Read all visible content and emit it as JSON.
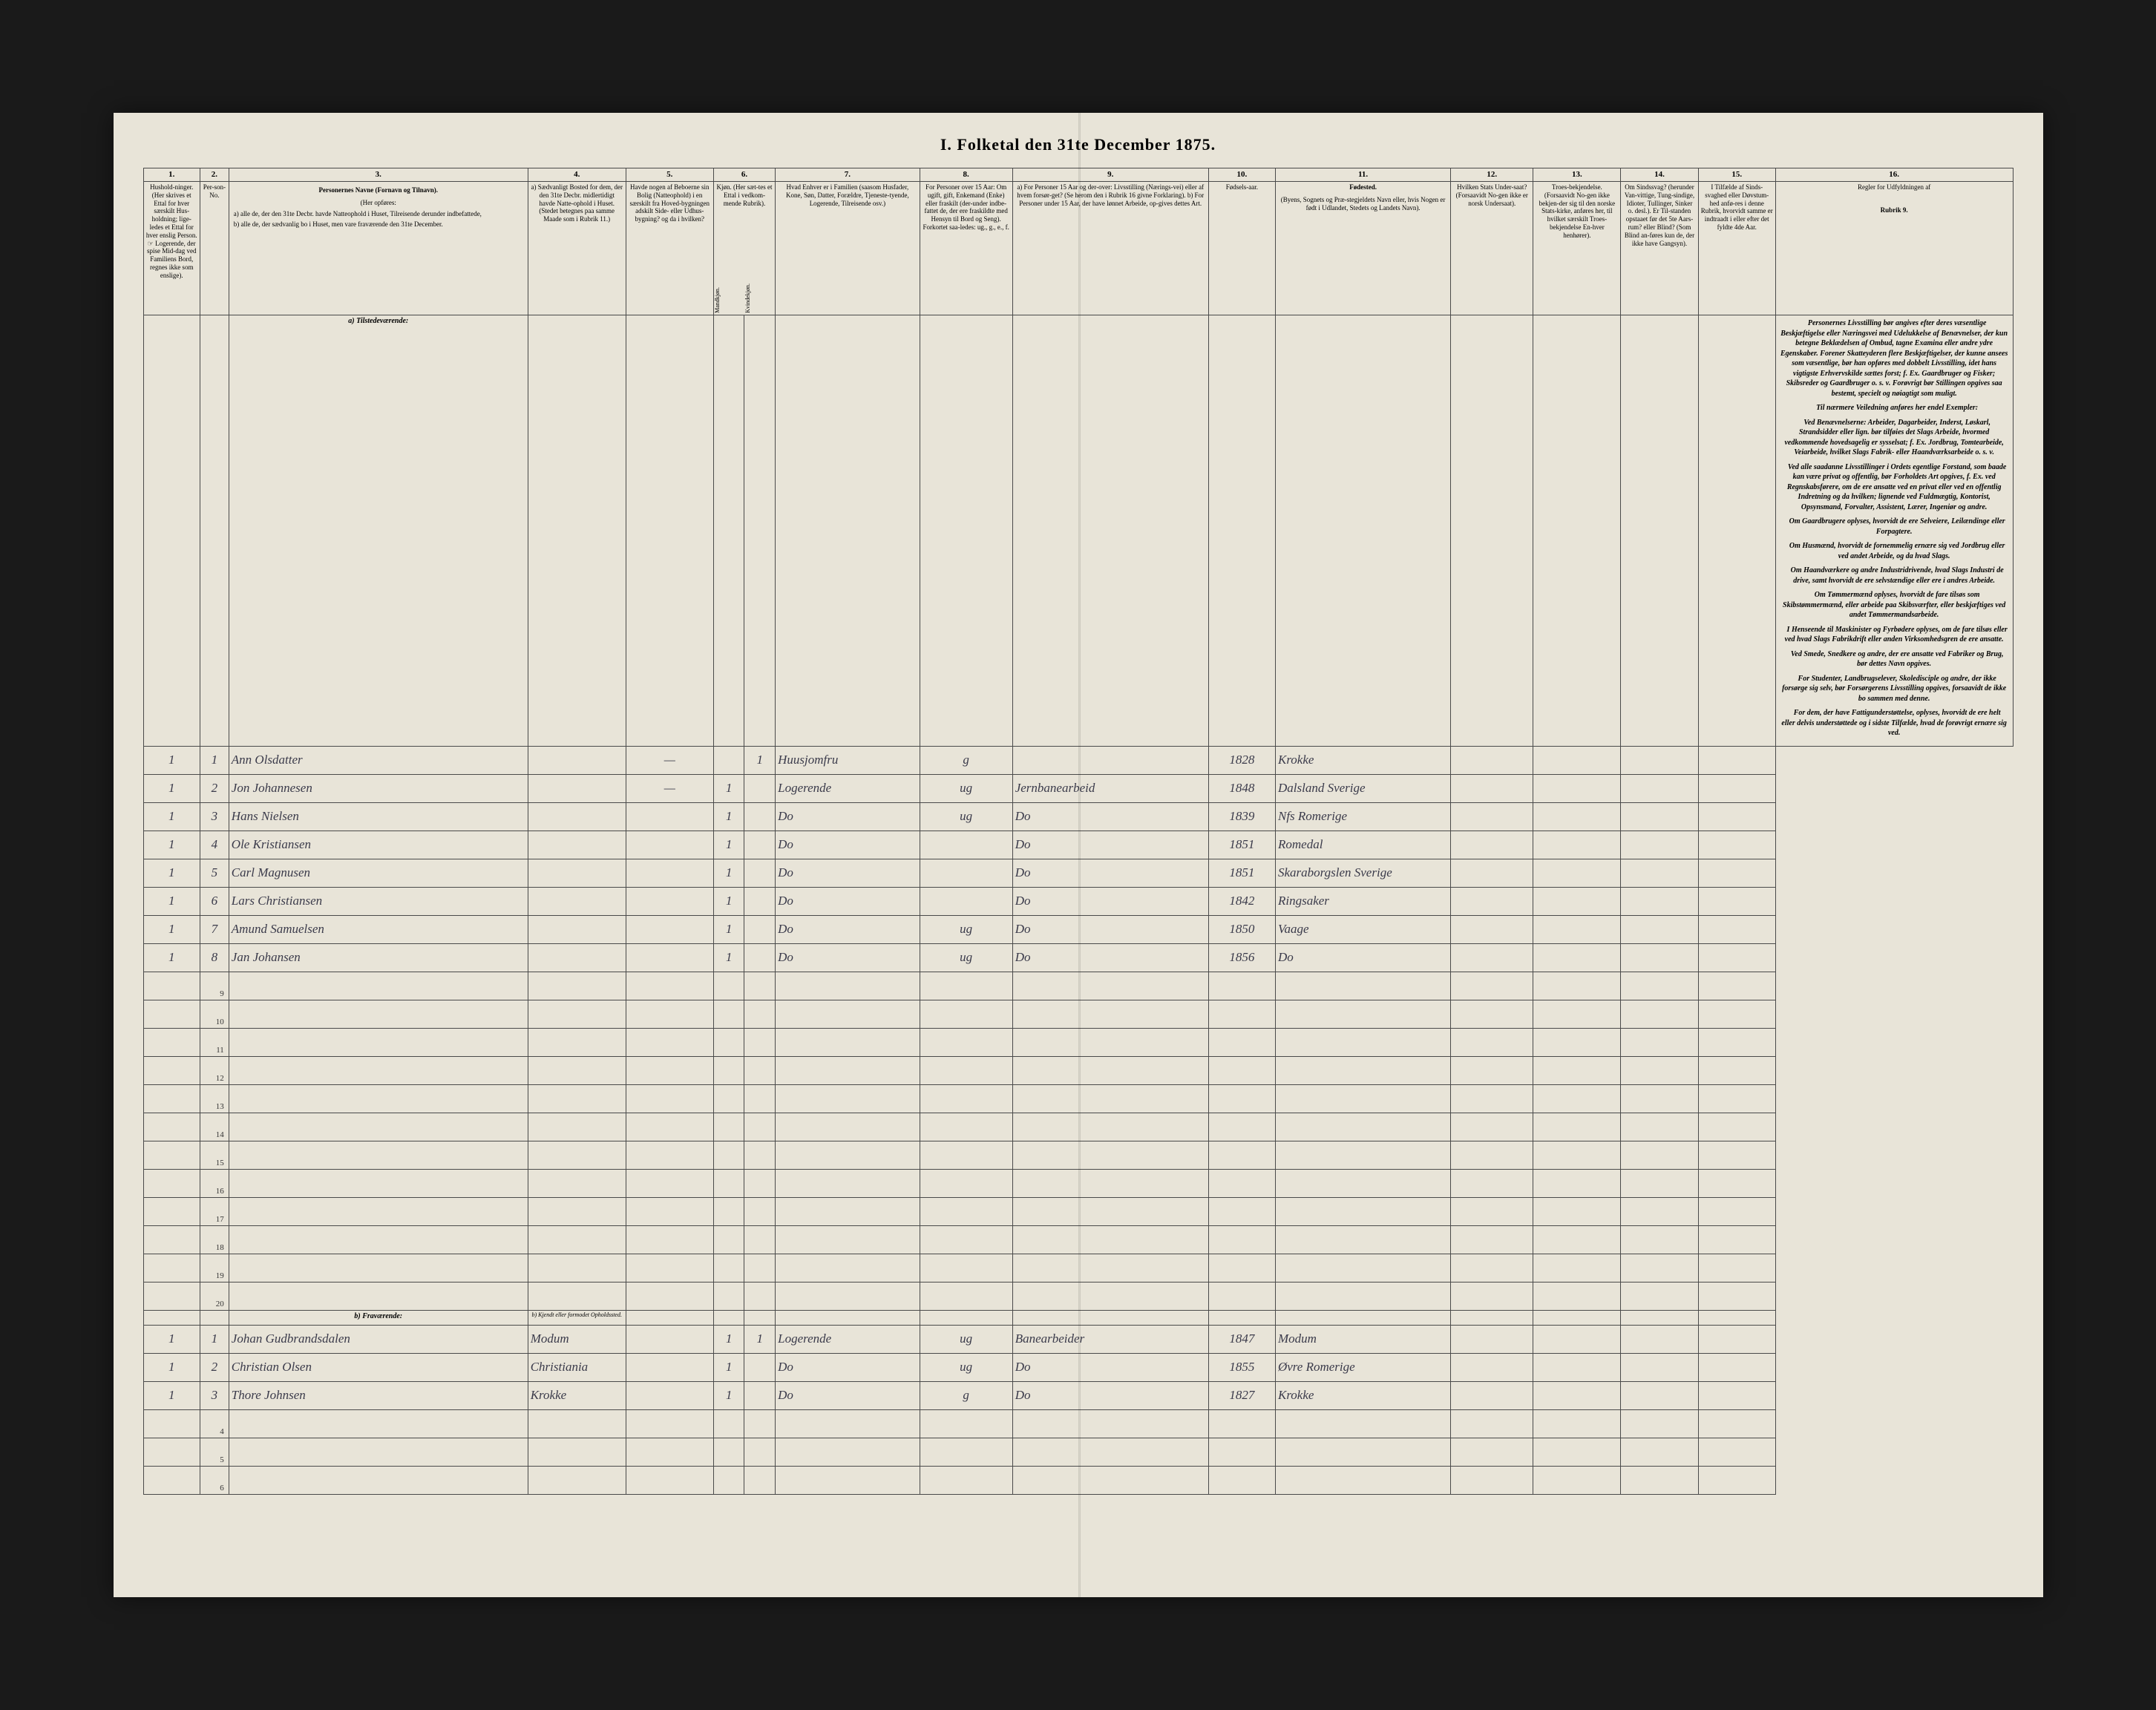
{
  "title": "I. Folketal den 31te December 1875.",
  "column_numbers": [
    "1.",
    "2.",
    "3.",
    "4.",
    "5.",
    "6.",
    "7.",
    "8.",
    "9.",
    "10.",
    "11.",
    "12.",
    "13.",
    "14.",
    "15.",
    "16."
  ],
  "headers": {
    "c1": "Hushold-ninger. (Her skrives et Ettal for hver særskilt Hus-holdning; lige-ledes et Ettal for hver enslig Person. ☞ Logerende, der spise Mid-dag ved Familiens Bord, regnes ikke som enslige).",
    "c2": "Per-son-No.",
    "c3_title": "Personernes Navne (Fornavn og Tilnavn).",
    "c3_sub": "(Her opføres:",
    "c3_a": "a) alle de, der den 31te Decbr. havde Natteophold i Huset, Tilreisende derunder indbefattede,",
    "c3_b": "b) alle de, der sædvanlig bo i Huset, men vare fraværende den 31te December.",
    "c4": "a) Sædvanligt Bosted for dem, der den 31te Decbr. midlertidigt havde Natte-ophold i Huset. (Stedet betegnes paa samme Maade som i Rubrik 11.)",
    "c5": "Havde nogen af Beboerne sin Bolig (Natteophold) i en særskilt fra Hoved-bygningen adskilt Side- eller Udhus-bygning? og da i hvilken?",
    "c6": "Kjøn. (Her sæt-tes et Ettal i vedkom-mende Rubrik).",
    "c6a": "Mandkjøn.",
    "c6b": "Kvindekjøn.",
    "c7": "Hvad Enhver er i Familien (saasom Husfader, Kone, Søn, Datter, Forældre, Tjeneste-tyende, Logerende, Tilreisende osv.)",
    "c8": "For Personer over 15 Aar: Om ugift, gift, Enkemand (Enke) eller fraskilt (der-under indbe-fattet de, der ere fraskildte med Hensyn til Bord og Seng). Forkortet saa-ledes: ug., g., e., f.",
    "c9": "a) For Personer 15 Aar og der-over: Livsstilling (Nærings-vei) eller af hvem forsør-get? (Se herom den i Rubrik 16 givne Forklaring).  b) For Personer under 15 Aar, der have lønnet Arbeide, op-gives dettes Art.",
    "c10": "Fødsels-aar.",
    "c11_title": "Fødested.",
    "c11_sub": "(Byens, Sognets og Præ-stegjeldets Navn eller, hvis Nogen er født i Udlandet, Stedets og Landets Navn).",
    "c12": "Hvilken Stats Under-saat? (Forsaavidt No-gen ikke er norsk Undersaat).",
    "c13": "Troes-bekjendelse. (Forsaavidt No-gen ikke bekjen-der sig til den norske Stats-kirke, anføres her, til hvilket særskilt Troes-bekjendelse En-hver henhører).",
    "c14": "Om Sindssvag? (herunder Van-vittige, Tung-sindige, Idioter, Tullinger, Sinker o. desl.). Er Til-standen opstaaet før det 5te Aars-rum? eller Blind? (Som Blind an-føres kun de, der ikke have Gangsyn).",
    "c15": "I Tilfælde af Sinds-svaghed eller Døvstum-hed anfø-res i denne Rubrik, hvorvidt samme er indtraadt i eller efter det fyldte 4de Aar.",
    "c16_title": "Regler for Udfyldningen af",
    "c16_sub": "Rubrik 9."
  },
  "section_a": "a) Tilstedeværende:",
  "section_b": "b) Fraværende:",
  "section_b_col4": "b) Kjendt eller formodet Opholdssted.",
  "rows_a": [
    {
      "n": "1",
      "hh": "1",
      "p": "1",
      "name": "Ann Olsdatter",
      "c4": "",
      "c5": "—",
      "m": "",
      "k": "1",
      "fam": "Huusjomfru",
      "civ": "g",
      "occ": "",
      "year": "1828",
      "place": "Krokke"
    },
    {
      "n": "2",
      "hh": "1",
      "p": "2",
      "name": "Jon Johannesen",
      "c4": "",
      "c5": "—",
      "m": "1",
      "k": "",
      "fam": "Logerende",
      "civ": "ug",
      "occ": "Jernbanearbeid",
      "year": "1848",
      "place": "Dalsland Sverige"
    },
    {
      "n": "3",
      "hh": "1",
      "p": "3",
      "name": "Hans Nielsen",
      "c4": "",
      "c5": "",
      "m": "1",
      "k": "",
      "fam": "Do",
      "civ": "ug",
      "occ": "Do",
      "year": "1839",
      "place": "Nfs Romerige"
    },
    {
      "n": "4",
      "hh": "1",
      "p": "4",
      "name": "Ole Kristiansen",
      "c4": "",
      "c5": "",
      "m": "1",
      "k": "",
      "fam": "Do",
      "civ": "",
      "occ": "Do",
      "year": "1851",
      "place": "Romedal"
    },
    {
      "n": "5",
      "hh": "1",
      "p": "5",
      "name": "Carl Magnusen",
      "c4": "",
      "c5": "",
      "m": "1",
      "k": "",
      "fam": "Do",
      "civ": "",
      "occ": "Do",
      "year": "1851",
      "place": "Skaraborgslen Sverige"
    },
    {
      "n": "6",
      "hh": "1",
      "p": "6",
      "name": "Lars Christiansen",
      "c4": "",
      "c5": "",
      "m": "1",
      "k": "",
      "fam": "Do",
      "civ": "",
      "occ": "Do",
      "year": "1842",
      "place": "Ringsaker"
    },
    {
      "n": "7",
      "hh": "1",
      "p": "7",
      "name": "Amund Samuelsen",
      "c4": "",
      "c5": "",
      "m": "1",
      "k": "",
      "fam": "Do",
      "civ": "ug",
      "occ": "Do",
      "year": "1850",
      "place": "Vaage"
    },
    {
      "n": "8",
      "hh": "1",
      "p": "8",
      "name": "Jan Johansen",
      "c4": "",
      "c5": "",
      "m": "1",
      "k": "",
      "fam": "Do",
      "civ": "ug",
      "occ": "Do",
      "year": "1856",
      "place": "Do"
    }
  ],
  "empty_rows_a": [
    "9",
    "10",
    "11",
    "12",
    "13",
    "14",
    "15",
    "16",
    "17",
    "18",
    "19",
    "20"
  ],
  "rows_b": [
    {
      "n": "1",
      "hh": "1",
      "p": "1",
      "name": "Johan Gudbrandsdalen",
      "c4": "Modum",
      "c5": "",
      "m": "1",
      "k": "1",
      "fam": "Logerende",
      "civ": "ug",
      "occ": "Banearbeider",
      "year": "1847",
      "place": "Modum"
    },
    {
      "n": "2",
      "hh": "1",
      "p": "2",
      "name": "Christian Olsen",
      "c4": "Christiania",
      "c5": "",
      "m": "1",
      "k": "",
      "fam": "Do",
      "civ": "ug",
      "occ": "Do",
      "year": "1855",
      "place": "Øvre Romerige"
    },
    {
      "n": "3",
      "hh": "1",
      "p": "3",
      "name": "Thore Johnsen",
      "c4": "Krokke",
      "c5": "",
      "m": "1",
      "k": "",
      "fam": "Do",
      "civ": "g",
      "occ": "Do",
      "year": "1827",
      "place": "Krokke"
    }
  ],
  "empty_rows_b": [
    "4",
    "5",
    "6"
  ],
  "side_paragraphs": [
    "Personernes <b>Livsstilling</b> bør angives efter deres væsentlige Beskjæftigelse eller Næringsvei med Udelukkelse af Benævnelser, der kun betegne Beklædelsen af Ombud, tagne Examina eller andre ydre Egenskaber. Forener Skatteyderen flere Beskjæftigelser, der kunne ansees som væsentlige, bør han opføres med dobbelt Livsstilling, idet hans vigtigste Erhvervskilde sættes forst; f. Ex. Gaardbruger og Fisker; Skibsreder og Gaardbruger o. s. v. Forøvrigt bør Stillingen opgives saa <b>bestemt, specielt og nøiagtigt</b> som muligt.",
    "Til nærmere Veiledning anføres her endel Exempler:",
    "Ved Benævnelserne: <b>Arbeider, Dagarbeider, Inderst, Løskarl, Strandsidder</b> eller lign. bør tilføies det Slags Arbeide, hvormed vedkommende hovedsagelig er sysselsat; f. Ex. Jordbrug, Tomtearbeide, Veiarbeide, hvilket Slags Fabrik- eller Haandværksarbeide o. s. v.",
    "Ved alle saadanne Livsstillinger i Ordets egentlige Forstand, som baade kan være <b>privat</b> og <b>offentlig</b>, bør <b>Forholdets Art</b> opgives, f. Ex. ved Regnskabsførere, om de ere ansatte ved en privat eller ved en offentlig Indretning og da hvilken; lignende ved Fuldmægtig, Kontorist, Opsynsmand, Forvalter, Assistent, Lærer, Ingeniør og andre.",
    "Om <b>Gaardbrugere</b> oplyses, hvorvidt de ere Selveiere, Leilændinge eller Forpagtere.",
    "Om <b>Husmænd</b>, hvorvidt de fornemmelig ernære sig ved Jordbrug eller ved andet Arbeide, og da hvad Slags.",
    "Om <b>Haandværkere</b> og andre <b>Industridrivende</b>, hvad Slags Industri de drive, samt hvorvidt de ere selvstændige eller ere i andres Arbeide.",
    "Om <b>Tømmermænd</b> oplyses, hvorvidt de fare tilsøs som Skibstømmermænd, eller arbeide paa Skibsværfter, eller beskjæftiges ved andet Tømmermandsarbeide.",
    "I Henseende til <b>Maskinister og Fyrbødere</b> oplyses, om de fare tilsøs eller ved hvad Slags Fabrikdrift eller anden Virksomhedsgren de ere ansatte.",
    "Ved <b>Smede, Snedkere og andre</b>, der ere ansatte ved Fabriker og Brug, bør dettes Navn opgives.",
    "For <b>Studenter, Landbrugselever, Skoledisciple</b> og andre, der ikke forsørge sig selv, bør <b>Forsørgerens</b> Livsstilling opgives, forsaavidt de ikke bo sammen med denne.",
    "For dem, der have <b>Fattigunderstøttelse</b>, oplyses, hvorvidt de ere helt eller delvis understøttede og i sidste Tilfælde, hvad de forøvrigt ernære sig ved."
  ]
}
